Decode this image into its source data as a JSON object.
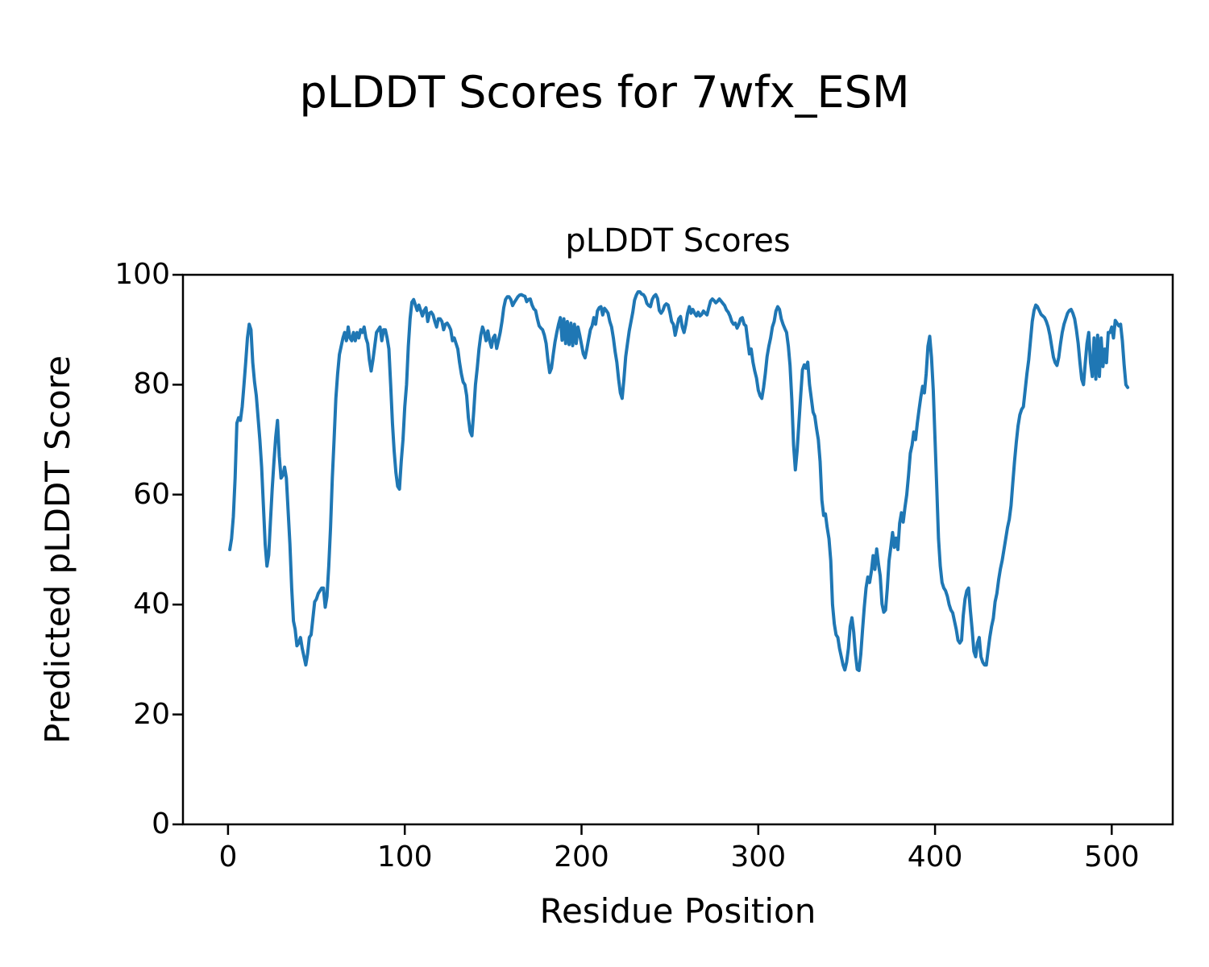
{
  "figure": {
    "title": "pLDDT Scores for 7wfx_ESM"
  },
  "axes": {
    "title": "pLDDT Scores",
    "xlabel": "Residue Position",
    "ylabel": "Predicted pLDDT Score"
  },
  "chart_data": {
    "type": "line",
    "title": "pLDDT Scores",
    "xlabel": "Residue Position",
    "ylabel": "Predicted pLDDT Score",
    "series_name": "pLDDT",
    "line_color": "#1f77b4",
    "grid": false,
    "legend": "none",
    "xlim": [
      -25.5,
      534.5
    ],
    "ylim": [
      0,
      100
    ],
    "xticks": [
      0,
      100,
      200,
      300,
      400,
      500
    ],
    "yticks": [
      0,
      20,
      40,
      60,
      80,
      100
    ],
    "x_start": 1,
    "scores": [
      50,
      52,
      56,
      63,
      73,
      74,
      73.5,
      76,
      80,
      84,
      88.5,
      91,
      90,
      84,
      80.5,
      78,
      74,
      70,
      65,
      58,
      51,
      47,
      49,
      55,
      61,
      66,
      70.5,
      73.5,
      67,
      63,
      63.5,
      65,
      63,
      57,
      51,
      43,
      37,
      35.5,
      32.5,
      33,
      34,
      32,
      30.5,
      29,
      31,
      34,
      34.5,
      37.5,
      40.5,
      41,
      42,
      42.5,
      43,
      43,
      39.5,
      41.5,
      47,
      54,
      63,
      70,
      77.5,
      82,
      85.5,
      87,
      88.5,
      89.5,
      88,
      90.5,
      88.5,
      88,
      89.5,
      88,
      89.5,
      88.5,
      90,
      89.5,
      90.5,
      88.5,
      87.5,
      84.5,
      82.5,
      84.5,
      87,
      89.5,
      90,
      90.5,
      88,
      90,
      90,
      88.5,
      86.5,
      80,
      73,
      68,
      64,
      61.5,
      61,
      66,
      70,
      76,
      80,
      87,
      92,
      95,
      95.5,
      94.5,
      93.5,
      94.5,
      93.5,
      92.5,
      93.5,
      94,
      91.5,
      93,
      93.2,
      92.7,
      91.5,
      90.5,
      92,
      92,
      91.5,
      90,
      91,
      91.2,
      90.7,
      90,
      88,
      88.5,
      87.5,
      86.5,
      84,
      82,
      80.5,
      80,
      78,
      74,
      71.5,
      70.7,
      75,
      80,
      83,
      86.5,
      89,
      90.5,
      89.5,
      88,
      89.8,
      88,
      86.8,
      88.5,
      89,
      86.6,
      88,
      89.5,
      91.5,
      94,
      95.5,
      96,
      96,
      95.5,
      94.4,
      95,
      95.5,
      96,
      96.3,
      96.4,
      96.2,
      96.1,
      95.1,
      95.5,
      95.6,
      94.5,
      93.8,
      93.5,
      92,
      90.7,
      90.3,
      90,
      89,
      87.5,
      84.5,
      82.2,
      83,
      85.5,
      87.8,
      89.5,
      91,
      92.2,
      88.1,
      92,
      87.5,
      91.5,
      87.3,
      91.2,
      87.1,
      91,
      87.5,
      90.5,
      89,
      87.3,
      85.6,
      84.9,
      86.5,
      88.3,
      90,
      90.7,
      92.2,
      91,
      93.4,
      94,
      94.2,
      92.7,
      93.9,
      93.5,
      93,
      91.5,
      90.5,
      88.5,
      86,
      84.1,
      81,
      78.5,
      77.5,
      81,
      85.1,
      87.5,
      89.8,
      91.5,
      93.2,
      95.4,
      96.3,
      96.9,
      96.9,
      96.5,
      96.4,
      95.9,
      94.8,
      94.4,
      94.2,
      95.5,
      96.1,
      96.4,
      95.7,
      93.5,
      93,
      93.5,
      94.4,
      94.7,
      94.5,
      93.2,
      91.5,
      91,
      89,
      90.5,
      92,
      92.4,
      90.5,
      89.5,
      91,
      93,
      94.2,
      93,
      93.7,
      93,
      92.5,
      93.2,
      92.5,
      92.8,
      93.4,
      93,
      92.7,
      94,
      95.2,
      95.6,
      95.3,
      94.9,
      95.2,
      95.6,
      95.2,
      94.8,
      94.4,
      93.6,
      93.2,
      92.5,
      91.5,
      91,
      91.2,
      90.3,
      91,
      92,
      92.2,
      91,
      90.7,
      88.1,
      85.6,
      86.5,
      84.1,
      82.5,
      81.2,
      79,
      78,
      77.5,
      79.5,
      82,
      85.1,
      87,
      88.5,
      90.5,
      91.5,
      93.4,
      94.2,
      93.7,
      92,
      91,
      90.2,
      89.5,
      87,
      83.5,
      77.3,
      69,
      64.5,
      68,
      73,
      78,
      82.7,
      83.6,
      83,
      84.1,
      80,
      77.5,
      75,
      74.3,
      72,
      70,
      66,
      59,
      56.2,
      56.5,
      54,
      52,
      48,
      40,
      36.5,
      34.5,
      34,
      32,
      30.5,
      29,
      28.1,
      29.5,
      32,
      36,
      37.6,
      35,
      31,
      28.2,
      28,
      31,
      35.5,
      39.5,
      43,
      45,
      44,
      46,
      48.9,
      46.4,
      50.1,
      47.4,
      45.2,
      40.1,
      38.6,
      39,
      43,
      47.9,
      50.4,
      53.1,
      50.4,
      52.1,
      50,
      54.8,
      56.7,
      55,
      57.7,
      60,
      63.5,
      67.5,
      69,
      71.4,
      70,
      73,
      75.5,
      77.8,
      79.7,
      78.5,
      82,
      87,
      88.8,
      85,
      79,
      70,
      61,
      52,
      47,
      44,
      43,
      42.5,
      41.5,
      40,
      39,
      38.5,
      37,
      35.5,
      33.5,
      33,
      33.5,
      38,
      41,
      42.5,
      43,
      39,
      35.5,
      31.5,
      30.5,
      33,
      34,
      30.5,
      29.5,
      29,
      29,
      31.5,
      34,
      36,
      37.5,
      40.5,
      42,
      44.5,
      46.5,
      48,
      50,
      52,
      54,
      55.5,
      58,
      62,
      66,
      69.5,
      72.5,
      74.5,
      75.5,
      76,
      79,
      82,
      84.5,
      88,
      91.5,
      93.5,
      94.5,
      94.2,
      93.5,
      92.8,
      92.5,
      92.2,
      91.5,
      90.5,
      89,
      87,
      85,
      84,
      83.5,
      85,
      87.5,
      89.5,
      91,
      92,
      93,
      93.5,
      93.7,
      93,
      92,
      90,
      87.5,
      84,
      81,
      80,
      84,
      87.5,
      89.5,
      84,
      81.5,
      88.5,
      81,
      89,
      81.5,
      88.5,
      83.3,
      86.5,
      84,
      89.5,
      89.5,
      90.5,
      88.5,
      91.7,
      91.2,
      90.7,
      91,
      88,
      83.6,
      80,
      79.5
    ]
  }
}
